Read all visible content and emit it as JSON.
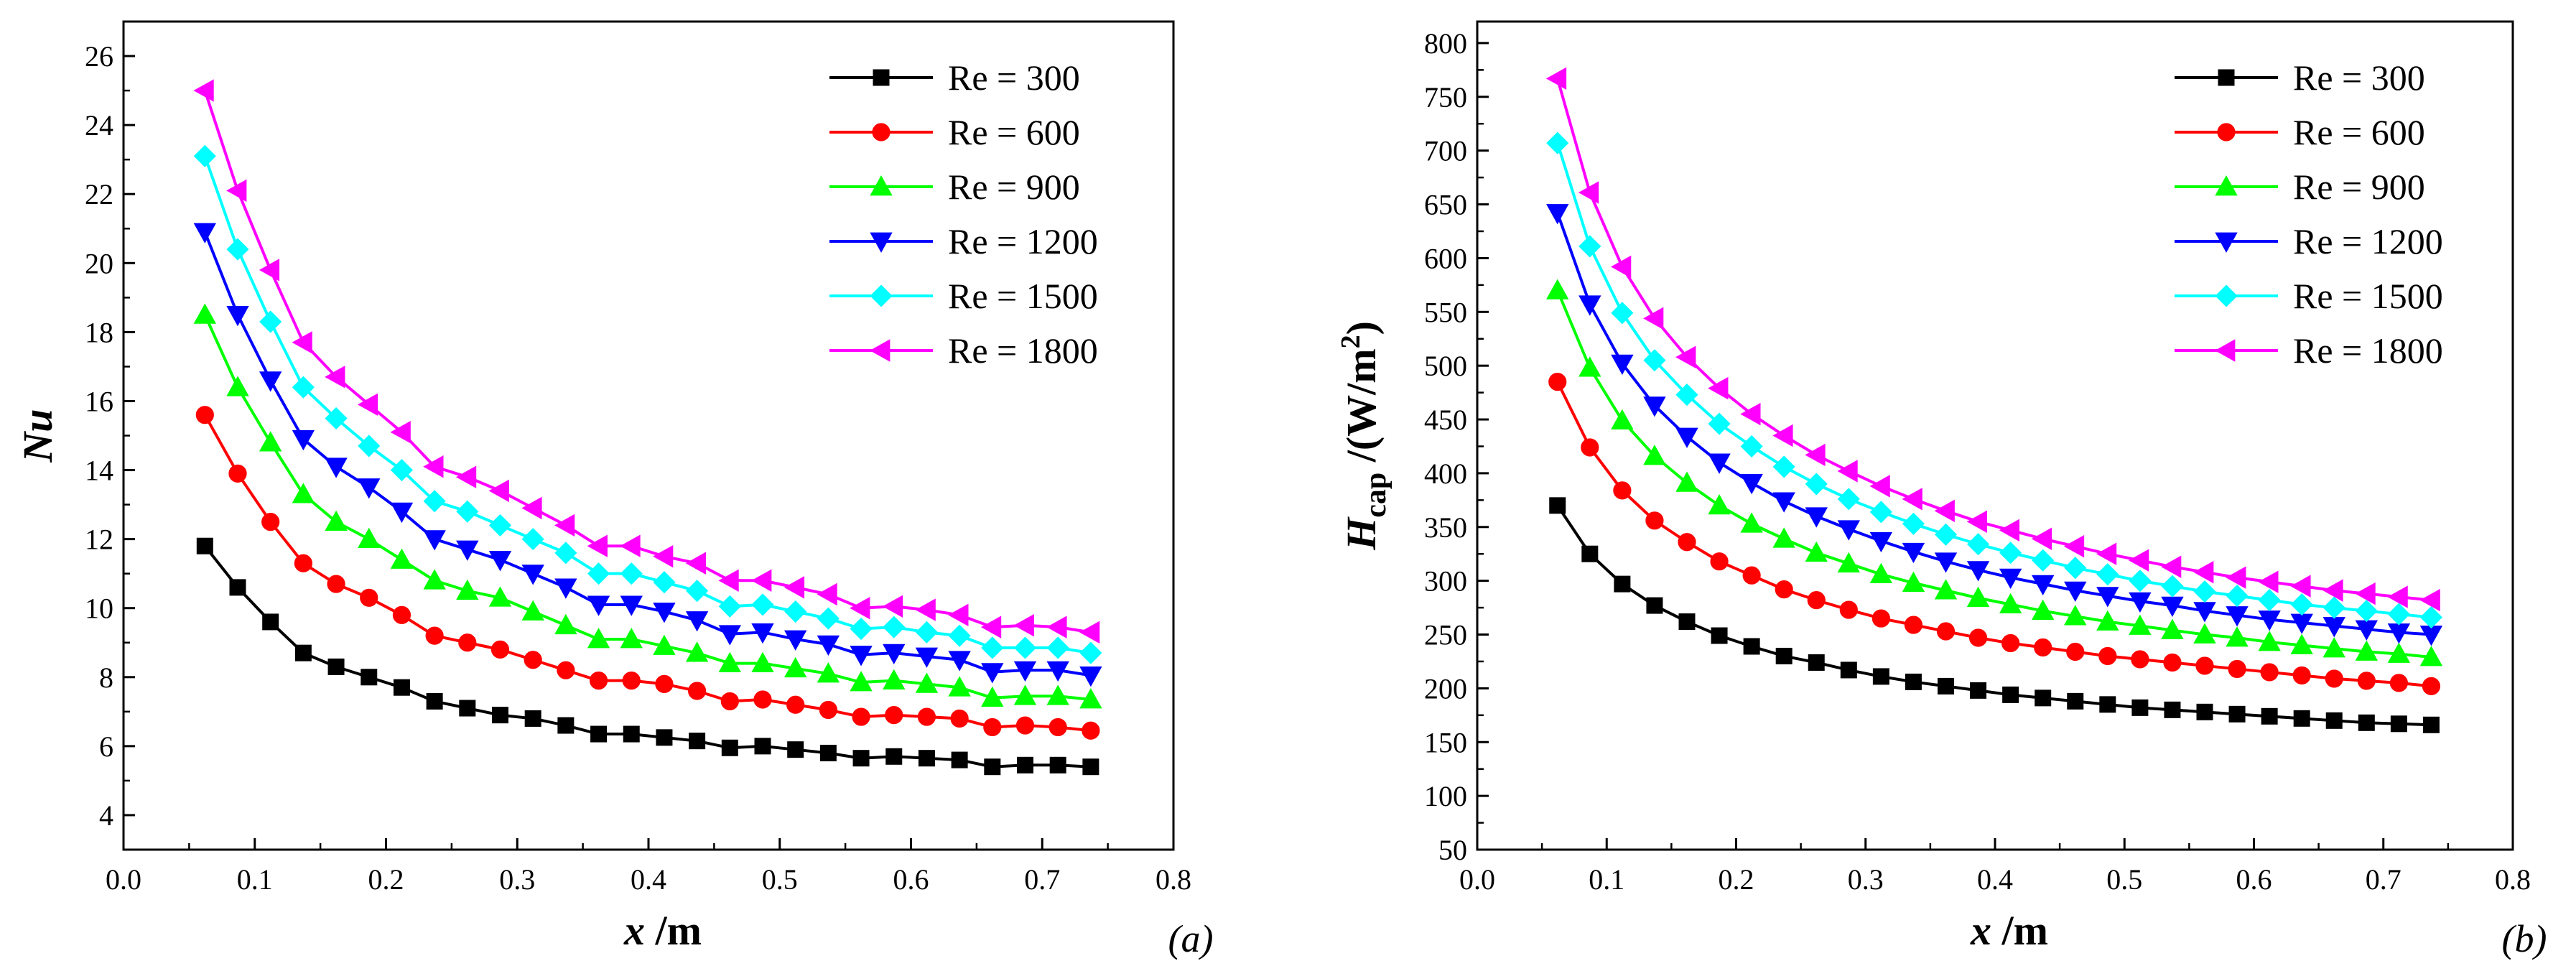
{
  "colors": {
    "Re = 300": "#000000",
    "Re = 600": "#ff0000",
    "Re = 900": "#00ff00",
    "Re = 1200": "#0000ff",
    "Re = 1500": "#00ffff",
    "Re = 1800": "#ff00ff"
  },
  "markers": {
    "Re = 300": "square",
    "Re = 600": "circle",
    "Re = 900": "triangle-up",
    "Re = 1200": "triangle-down",
    "Re = 1500": "diamond",
    "Re = 1800": "triangle-left"
  },
  "chart_data": [
    {
      "type": "line",
      "panel": "(a)",
      "xlabel": "x /m",
      "ylabel": "Nu",
      "xlim": [
        0.0,
        0.8
      ],
      "ylim": [
        3,
        27
      ],
      "xticks": [
        "0.0",
        "0.1",
        "0.2",
        "0.3",
        "0.4",
        "0.5",
        "0.6",
        "0.7",
        "0.8"
      ],
      "yticks": [
        "4",
        "6",
        "8",
        "10",
        "12",
        "14",
        "16",
        "18",
        "20",
        "22",
        "24",
        "26"
      ],
      "grid": false,
      "legend_position": "top-right",
      "x": [
        0.062,
        0.087,
        0.112,
        0.137,
        0.162,
        0.187,
        0.212,
        0.237,
        0.262,
        0.287,
        0.312,
        0.337,
        0.362,
        0.387,
        0.412,
        0.437,
        0.462,
        0.487,
        0.512,
        0.537,
        0.562,
        0.587,
        0.612,
        0.637,
        0.662,
        0.687,
        0.712,
        0.737
      ],
      "series": [
        {
          "name": "Re = 300",
          "values": [
            11.8,
            10.6,
            9.6,
            8.7,
            8.3,
            8.0,
            7.7,
            7.3,
            7.1,
            6.9,
            6.8,
            6.6,
            6.35,
            6.35,
            6.25,
            6.15,
            5.95,
            6.0,
            5.9,
            5.8,
            5.65,
            5.7,
            5.65,
            5.6,
            5.4,
            5.45,
            5.45,
            5.4
          ]
        },
        {
          "name": "Re = 600",
          "values": [
            15.6,
            13.9,
            12.5,
            11.3,
            10.7,
            10.3,
            9.8,
            9.2,
            9.0,
            8.8,
            8.5,
            8.2,
            7.9,
            7.9,
            7.8,
            7.6,
            7.3,
            7.35,
            7.2,
            7.05,
            6.85,
            6.9,
            6.85,
            6.8,
            6.55,
            6.6,
            6.55,
            6.45
          ]
        },
        {
          "name": "Re = 900",
          "values": [
            18.5,
            16.4,
            14.8,
            13.3,
            12.5,
            12.0,
            11.4,
            10.8,
            10.5,
            10.3,
            9.9,
            9.5,
            9.1,
            9.1,
            8.9,
            8.7,
            8.4,
            8.4,
            8.25,
            8.1,
            7.85,
            7.9,
            7.8,
            7.7,
            7.4,
            7.45,
            7.45,
            7.35
          ]
        },
        {
          "name": "Re = 1200",
          "values": [
            20.9,
            18.5,
            16.6,
            14.9,
            14.1,
            13.5,
            12.8,
            12.0,
            11.7,
            11.4,
            11.0,
            10.6,
            10.1,
            10.1,
            9.9,
            9.65,
            9.25,
            9.3,
            9.1,
            8.95,
            8.65,
            8.7,
            8.6,
            8.5,
            8.15,
            8.2,
            8.2,
            8.05
          ]
        },
        {
          "name": "Re = 1500",
          "values": [
            23.1,
            20.4,
            18.3,
            16.4,
            15.5,
            14.7,
            14.0,
            13.1,
            12.8,
            12.4,
            12.0,
            11.6,
            11.0,
            11.0,
            10.75,
            10.5,
            10.05,
            10.1,
            9.9,
            9.7,
            9.4,
            9.45,
            9.3,
            9.2,
            8.85,
            8.85,
            8.85,
            8.7
          ]
        },
        {
          "name": "Re = 1800",
          "values": [
            25.0,
            22.1,
            19.8,
            17.7,
            16.7,
            15.9,
            15.1,
            14.1,
            13.8,
            13.4,
            12.9,
            12.4,
            11.8,
            11.8,
            11.5,
            11.3,
            10.8,
            10.8,
            10.6,
            10.4,
            10.0,
            10.05,
            9.95,
            9.8,
            9.45,
            9.5,
            9.45,
            9.3
          ]
        }
      ]
    },
    {
      "type": "line",
      "panel": "(b)",
      "xlabel": "x /m",
      "ylabel_main": "H",
      "ylabel_sub": "cap",
      "ylabel_unit": " /(W/m",
      "ylabel_sup": "2",
      "ylabel_close": ")",
      "xlim": [
        0.0,
        0.8
      ],
      "ylim": [
        50,
        820
      ],
      "xticks": [
        "0.0",
        "0.1",
        "0.2",
        "0.3",
        "0.4",
        "0.5",
        "0.6",
        "0.7",
        "0.8"
      ],
      "yticks": [
        "50",
        "100",
        "150",
        "200",
        "250",
        "300",
        "350",
        "400",
        "450",
        "500",
        "550",
        "600",
        "650",
        "700",
        "750",
        "800"
      ],
      "grid": false,
      "legend_position": "top-right",
      "x": [
        0.062,
        0.087,
        0.112,
        0.137,
        0.162,
        0.187,
        0.212,
        0.237,
        0.262,
        0.287,
        0.312,
        0.337,
        0.362,
        0.387,
        0.412,
        0.437,
        0.462,
        0.487,
        0.512,
        0.537,
        0.562,
        0.587,
        0.612,
        0.637,
        0.662,
        0.687,
        0.712,
        0.737
      ],
      "series": [
        {
          "name": "Re = 300",
          "values": [
            370,
            325,
            297,
            277,
            262,
            249,
            239,
            230,
            224,
            217,
            211,
            206,
            202,
            198,
            194,
            191,
            188,
            185,
            182,
            180,
            178,
            176,
            174,
            172,
            170,
            168,
            167,
            166
          ]
        },
        {
          "name": "Re = 600",
          "values": [
            485,
            424,
            384,
            356,
            336,
            318,
            305,
            292,
            282,
            273,
            265,
            259,
            253,
            247,
            242,
            238,
            234,
            230,
            227,
            224,
            221,
            218,
            215,
            212,
            209,
            207,
            205,
            202
          ]
        },
        {
          "name": "Re = 900",
          "values": [
            570,
            498,
            449,
            416,
            391,
            370,
            353,
            339,
            326,
            316,
            306,
            298,
            291,
            284,
            278,
            272,
            267,
            262,
            258,
            254,
            250,
            247,
            243,
            240,
            237,
            234,
            232,
            229
          ]
        },
        {
          "name": "Re = 1200",
          "values": [
            642,
            557,
            502,
            463,
            434,
            410,
            391,
            374,
            360,
            348,
            337,
            327,
            318,
            310,
            303,
            297,
            291,
            286,
            281,
            277,
            272,
            268,
            264,
            261,
            258,
            255,
            252,
            250
          ]
        },
        {
          "name": "Re = 1500",
          "values": [
            707,
            611,
            549,
            505,
            473,
            446,
            425,
            406,
            390,
            376,
            364,
            353,
            343,
            334,
            326,
            319,
            312,
            306,
            300,
            295,
            290,
            286,
            282,
            278,
            275,
            272,
            269,
            266
          ]
        },
        {
          "name": "Re = 1800",
          "values": [
            767,
            661,
            592,
            544,
            508,
            479,
            455,
            435,
            417,
            402,
            388,
            376,
            365,
            355,
            347,
            339,
            332,
            325,
            319,
            313,
            308,
            303,
            299,
            295,
            291,
            288,
            285,
            282
          ]
        }
      ]
    }
  ]
}
